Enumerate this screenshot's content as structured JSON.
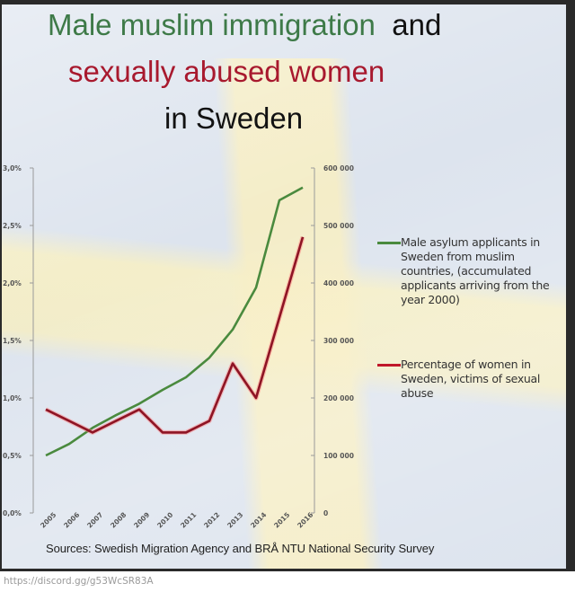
{
  "title": {
    "line1_green": "Male muslim immigration",
    "line1_black": "and",
    "line2_red": "sexually abused women",
    "line3_black": "in Sweden"
  },
  "colors": {
    "green": "#4a8a3e",
    "red": "#c0182a",
    "title_green": "#3e7a48",
    "title_red": "#a8192e"
  },
  "legend": {
    "items": [
      {
        "label": "Male asylum applicants in Sweden from muslim countries, (accumulated applicants arriving from the year 2000)",
        "color": "#4a8a3e"
      },
      {
        "label": "Percentage of women in Sweden, victims of sexual abuse",
        "color": "#c0182a"
      }
    ]
  },
  "sources": "Sources: Swedish Migration Agency and BRÅ NTU National Security Survey",
  "footer_url": "https://discord.gg/g53WcSR83A",
  "chart_data": {
    "type": "line",
    "title": "Male muslim immigration and sexually abused women in Sweden",
    "xlabel": "",
    "ylabel": "",
    "x": [
      "2005",
      "2006",
      "2007",
      "2008",
      "2009",
      "2010",
      "2011",
      "2012",
      "2013",
      "2014",
      "2015",
      "2016"
    ],
    "left_axis": {
      "ticks": [
        "0,0%",
        "0,5%",
        "1,0%",
        "1,5%",
        "2,0%",
        "2,5%",
        "3,0%"
      ],
      "ylim": [
        0,
        3.0
      ]
    },
    "right_axis": {
      "ticks": [
        "0",
        "100 000",
        "200 000",
        "300 000",
        "400 000",
        "500 000",
        "600 000"
      ],
      "ylim": [
        0,
        600000
      ]
    },
    "series": [
      {
        "name": "Male asylum applicants in Sweden from muslim countries, (accumulated applicants arriving from the year 2000)",
        "axis": "right",
        "color": "#4a8a3e",
        "values": [
          100000,
          120000,
          148000,
          170000,
          190000,
          214000,
          236000,
          270000,
          319000,
          392000,
          544000,
          566000
        ]
      },
      {
        "name": "Percentage of women in Sweden, victims of sexual abuse",
        "axis": "left",
        "color": "#c0182a",
        "values": [
          0.9,
          0.8,
          0.7,
          0.8,
          0.9,
          0.7,
          0.7,
          0.8,
          1.3,
          1.0,
          1.7,
          2.4
        ]
      }
    ],
    "legend_position": "right",
    "grid": false
  }
}
